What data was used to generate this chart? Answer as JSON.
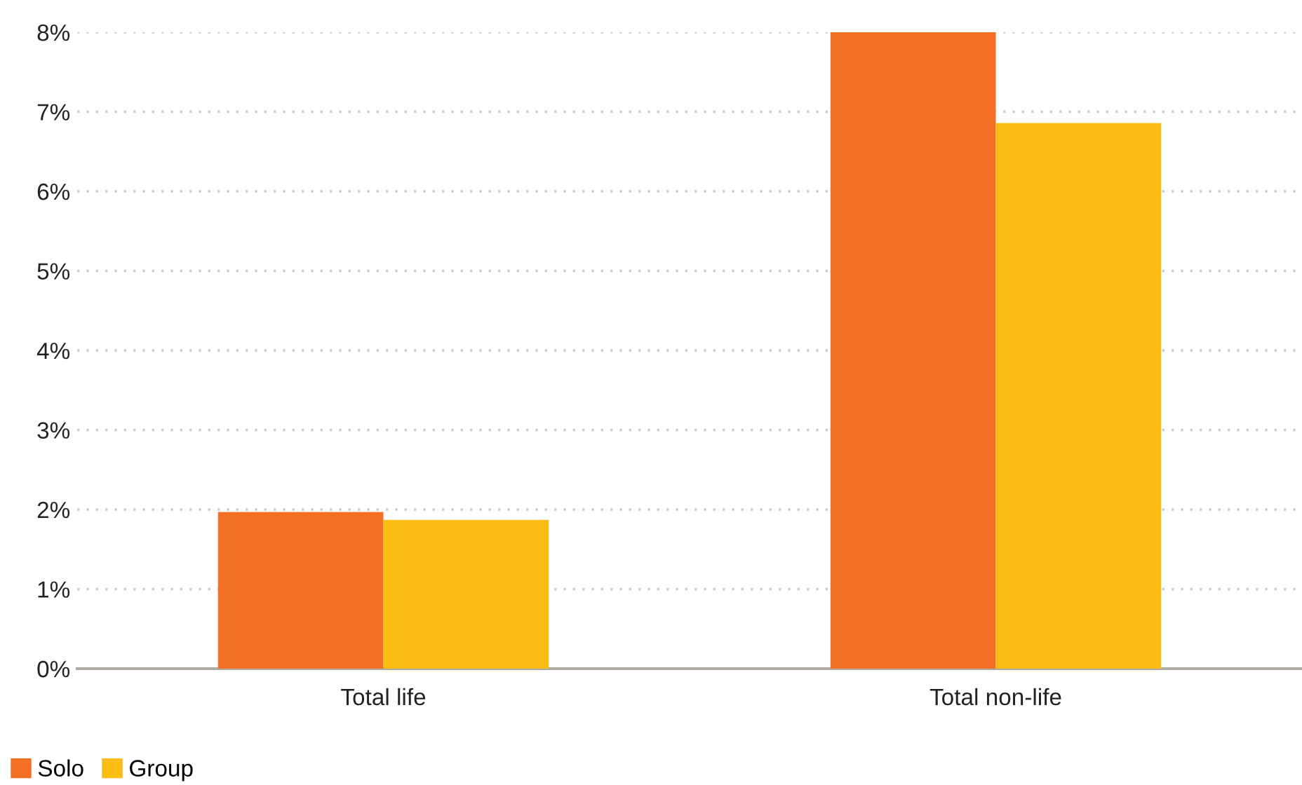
{
  "chart_data": {
    "type": "bar",
    "categories": [
      "Total life",
      "Total non-life"
    ],
    "series": [
      {
        "name": "Solo",
        "color": "#f36f24",
        "values": [
          1.97,
          8.0
        ]
      },
      {
        "name": "Group",
        "color": "#fbbd13",
        "values": [
          1.87,
          6.86
        ]
      }
    ],
    "ylim": [
      0,
      8
    ],
    "yticks": [
      {
        "value": 0,
        "label": "0%"
      },
      {
        "value": 1,
        "label": "1%"
      },
      {
        "value": 2,
        "label": "2%"
      },
      {
        "value": 3,
        "label": "3%"
      },
      {
        "value": 4,
        "label": "4%"
      },
      {
        "value": 5,
        "label": "5%"
      },
      {
        "value": 6,
        "label": "6%"
      },
      {
        "value": 7,
        "label": "7%"
      },
      {
        "value": 8,
        "label": "8%"
      }
    ],
    "grid": "y",
    "legend": "bottom left"
  }
}
